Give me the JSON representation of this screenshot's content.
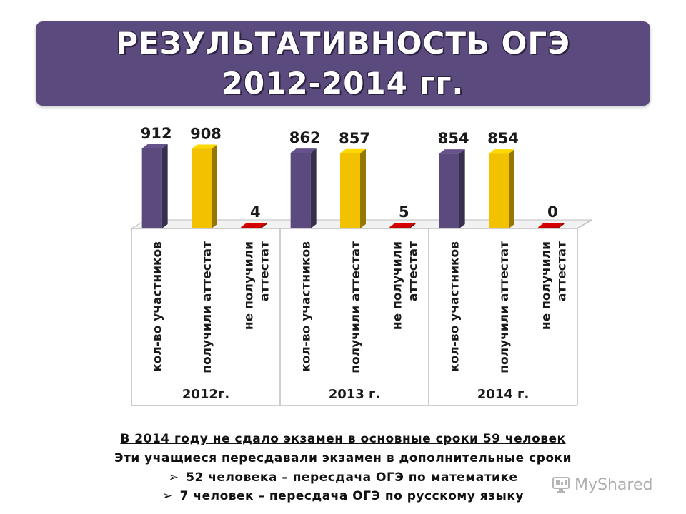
{
  "title": {
    "line1": "РЕЗУЛЬТАТИВНОСТЬ ОГЭ",
    "line2": "2012-2014 гг."
  },
  "chart_data": {
    "type": "bar",
    "groups": [
      "2012г.",
      "2013 г.",
      "2014 г."
    ],
    "categories": [
      "кол-во участников",
      "получили аттестат",
      "не получили аттестат"
    ],
    "series": [
      {
        "values": [
          912,
          908,
          4
        ],
        "group": "2012г."
      },
      {
        "values": [
          862,
          857,
          5
        ],
        "group": "2013 г."
      },
      {
        "values": [
          854,
          854,
          0
        ],
        "group": "2014 г."
      }
    ],
    "colors": [
      "#5b4a7d",
      "#f2c200",
      "#c00000"
    ],
    "category_labels_wrapped": [
      [
        "кол-во участников"
      ],
      [
        "получили аттестат"
      ],
      [
        "не получили",
        "аттестат"
      ]
    ],
    "ylim": [
      0,
      912
    ],
    "grid": false,
    "legend": "none"
  },
  "footer": {
    "headline": "В 2014 году не сдало экзамен  в основные сроки 59 человек",
    "subline": "Эти учащиеся пересдавали экзамен в дополнительные сроки",
    "bullet1": "52 человека – пересдача ОГЭ по математике",
    "bullet2": "7 человек – пересдача ОГЭ по русскому языку",
    "bullet_symbol": "➢"
  },
  "watermark": {
    "text": "MyShared"
  }
}
